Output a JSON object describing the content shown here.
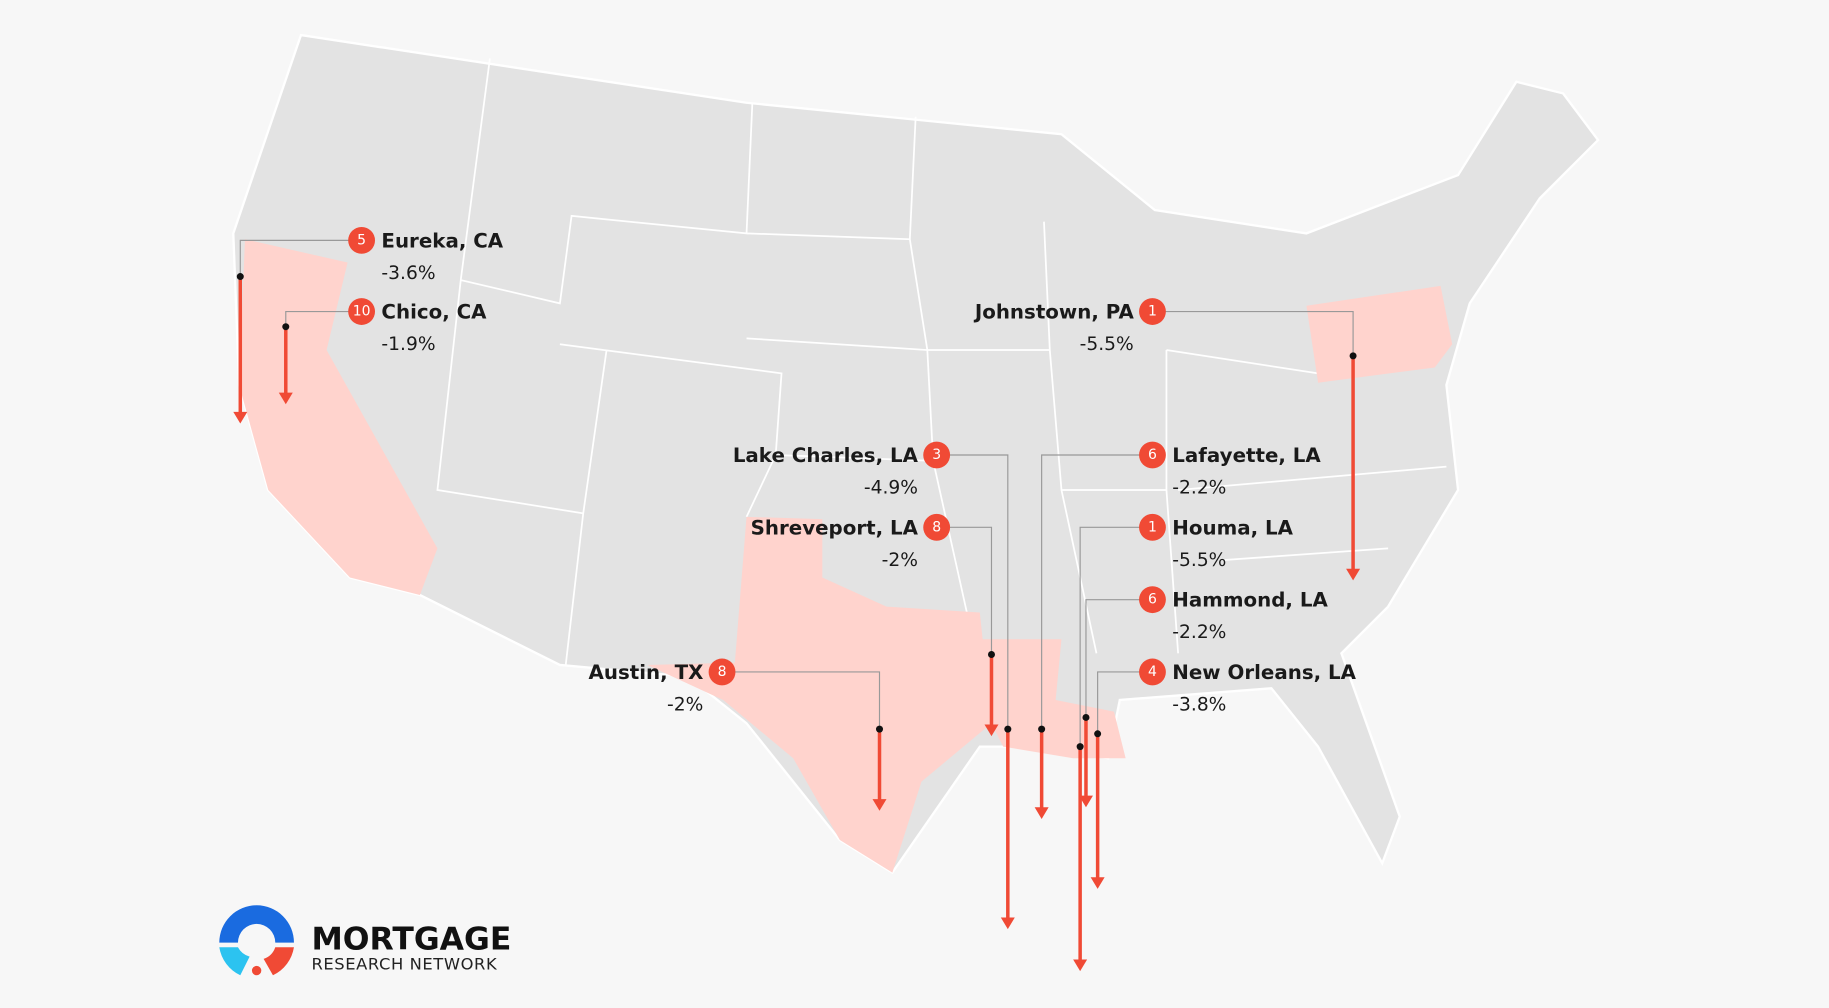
{
  "cities": [
    {
      "rank": 5,
      "name": "Eureka, CA",
      "change": -3.6,
      "change_label": "-3.6%"
    },
    {
      "rank": 10,
      "name": "Chico, CA",
      "change": -1.9,
      "change_label": "-1.9%"
    },
    {
      "rank": 1,
      "name": "Johnstown, PA",
      "change": -5.5,
      "change_label": "-5.5%"
    },
    {
      "rank": 3,
      "name": "Lake Charles, LA",
      "change": -4.9,
      "change_label": "-4.9%"
    },
    {
      "rank": 6,
      "name": "Lafayette, LA",
      "change": -2.2,
      "change_label": "-2.2%"
    },
    {
      "rank": 8,
      "name": "Shreveport, LA",
      "change": -2,
      "change_label": "-2%"
    },
    {
      "rank": 1,
      "name": "Houma, LA",
      "change": -5.5,
      "change_label": "-5.5%"
    },
    {
      "rank": 6,
      "name": "Hammond, LA",
      "change": -2.2,
      "change_label": "-2.2%"
    },
    {
      "rank": 4,
      "name": "New Orleans, LA",
      "change": -3.8,
      "change_label": "-3.8%"
    },
    {
      "rank": 8,
      "name": "Austin, TX",
      "change": -2,
      "change_label": "-2%"
    }
  ],
  "logo": {
    "name": "MORTGAGE",
    "subtitle": "RESEARCH NETWORK"
  }
}
